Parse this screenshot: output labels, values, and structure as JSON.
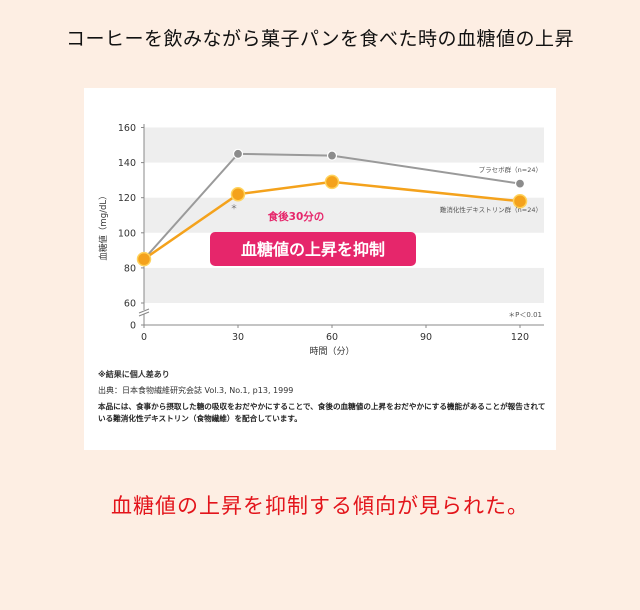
{
  "page": {
    "title": "コーヒーを飲みながら菓子パンを食べた時の血糖値の上昇",
    "conclusion": "血糖値の上昇を抑制する傾向が見られた。"
  },
  "colors": {
    "background": "#fdeee3",
    "conclusion_text": "#e3141b",
    "placebo_series": "#9a9a9a",
    "test_series": "#f4a21c",
    "callout_bg": "#e6266b"
  },
  "chart_data": {
    "type": "line",
    "ylabel": "血糖値（mg/dL）",
    "xlabel": "時間（分）",
    "x": [
      0,
      30,
      60,
      120
    ],
    "xticks": [
      "0",
      "30",
      "60",
      "90",
      "120"
    ],
    "yticks": [
      "0",
      "60",
      "80",
      "100",
      "120",
      "140",
      "160"
    ],
    "ylim": [
      0,
      160
    ],
    "axis_break": true,
    "bands": [
      [
        60,
        80
      ],
      [
        100,
        120
      ],
      [
        140,
        160
      ]
    ],
    "series": [
      {
        "name": "プラセボ群（n=24）",
        "values": [
          85,
          145,
          144,
          128
        ],
        "color": "#9a9a9a"
      },
      {
        "name": "難消化性デキストリン群（n=24）",
        "values": [
          85,
          122,
          129,
          118
        ],
        "color": "#f4a21c"
      }
    ],
    "annotations": {
      "callout_small": "食後30分の",
      "callout_main": "血糖値の上昇を抑制",
      "significance_mark": "＊",
      "significance_note": "＊P＜0.01"
    }
  },
  "notes": {
    "individual_diff": "※結果に個人差あり",
    "source": "出典：日本食物繊維研究会誌 Vol.3, No.1, p13, 1999",
    "disclaimer": "本品には、食事から摂取した糖の吸収をおだやかにすることで、食後の血糖値の上昇をおだやかにする機能があることが報告されている難消化性デキストリン（食物繊維）を配合しています。"
  }
}
